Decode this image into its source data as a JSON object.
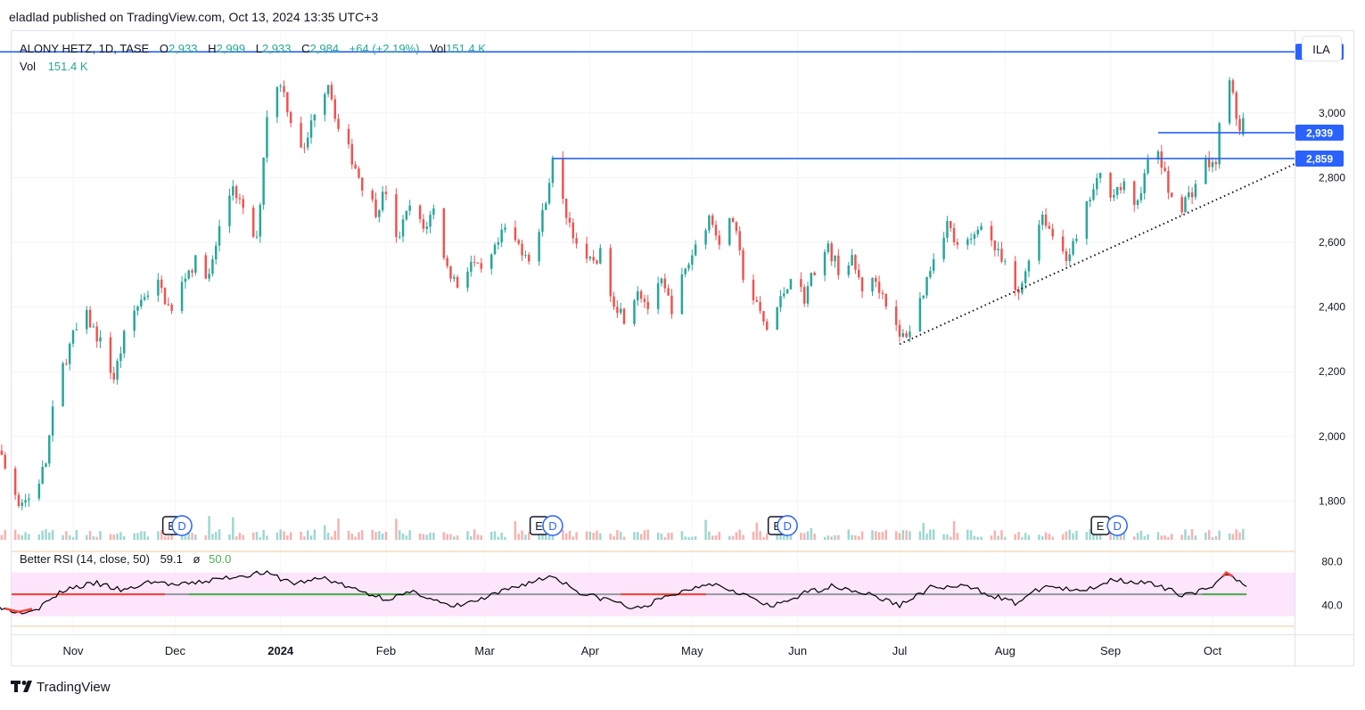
{
  "header": {
    "published": "eladlad published on TradingView.com, Oct 13, 2024 13:35 UTC+3"
  },
  "legend": {
    "symbol": "ALONY HETZ, 1D, TASE",
    "o_label": "O",
    "o_value": "2,933",
    "h_label": "H",
    "h_value": "2,999",
    "l_label": "L",
    "l_value": "2,933",
    "c_label": "C",
    "c_value": "2,984",
    "change": "+64 (+2.19%)",
    "vol_label": "Vol",
    "vol_value": "151.4 K",
    "vol_row_label": "Vol",
    "vol_row_value": "151.4 K"
  },
  "currency_button": "ILA",
  "footer": {
    "brand": "TradingView"
  },
  "colors": {
    "up": "#26a69a",
    "down": "#ef5350",
    "level": "#2962ff",
    "rsi_band": "#fde5fb",
    "rsi_line": "#000000",
    "rsi_mid": "#9598a1",
    "rsi_bull": "#4caf50",
    "rsi_bear": "#f44336"
  },
  "chart_data": [
    {
      "type": "candlestick",
      "symbol": "ALONY HETZ",
      "interval": "1D",
      "exchange": "TASE",
      "currency": "ILA",
      "x_tick_labels": [
        "Nov",
        "Dec",
        "2024",
        "Feb",
        "Mar",
        "Apr",
        "May",
        "Jun",
        "Jul",
        "Aug",
        "Sep",
        "Oct"
      ],
      "y_tick_labels": [
        "1,800",
        "2,000",
        "2,200",
        "2,400",
        "2,600",
        "2,800",
        "3,000"
      ],
      "ylim": [
        1680,
        3250
      ],
      "grid": true,
      "price_levels": [
        {
          "value": 3189,
          "label": "3,189",
          "from": "2023-10-01"
        },
        {
          "value": 2939,
          "label": "2,939",
          "from": "2024-09-15"
        },
        {
          "value": 2859,
          "label": "2,859",
          "from": "2024-03-21"
        }
      ],
      "trendline": {
        "style": "dotted",
        "from": [
          "2024-07-01",
          2285
        ],
        "to": [
          "2024-10-13",
          2820
        ]
      },
      "event_markers": [
        {
          "type": "E",
          "date": "2023-11-30"
        },
        {
          "type": "D",
          "date": "2023-12-03"
        },
        {
          "type": "E",
          "date": "2024-03-17"
        },
        {
          "type": "D",
          "date": "2024-03-21"
        },
        {
          "type": "E",
          "date": "2024-05-26"
        },
        {
          "type": "D",
          "date": "2024-05-29"
        },
        {
          "type": "E",
          "date": "2024-08-29"
        },
        {
          "type": "D",
          "date": "2024-09-03"
        }
      ],
      "anchors": [
        [
          "2023-10-01",
          2240
        ],
        [
          "2023-10-05",
          2230
        ],
        [
          "2023-10-08",
          2030
        ],
        [
          "2023-10-12",
          1900
        ],
        [
          "2023-10-16",
          1800
        ],
        [
          "2023-10-20",
          1810
        ],
        [
          "2023-10-24",
          1920
        ],
        [
          "2023-10-27",
          2150
        ],
        [
          "2023-11-01",
          2310
        ],
        [
          "2023-11-05",
          2370
        ],
        [
          "2023-11-09",
          2290
        ],
        [
          "2023-11-13",
          2180
        ],
        [
          "2023-11-17",
          2350
        ],
        [
          "2023-11-22",
          2440
        ],
        [
          "2023-11-26",
          2470
        ],
        [
          "2023-11-30",
          2380
        ],
        [
          "2023-12-04",
          2500
        ],
        [
          "2023-12-08",
          2550
        ],
        [
          "2023-12-11",
          2490
        ],
        [
          "2023-12-14",
          2640
        ],
        [
          "2023-12-18",
          2780
        ],
        [
          "2023-12-22",
          2660
        ],
        [
          "2023-12-25",
          2600
        ],
        [
          "2023-12-28",
          3000
        ],
        [
          "2024-01-01",
          3100
        ],
        [
          "2024-01-04",
          2980
        ],
        [
          "2024-01-08",
          2880
        ],
        [
          "2024-01-11",
          3010
        ],
        [
          "2024-01-15",
          3100
        ],
        [
          "2024-01-18",
          2950
        ],
        [
          "2024-01-22",
          2860
        ],
        [
          "2024-01-25",
          2780
        ],
        [
          "2024-01-29",
          2700
        ],
        [
          "2024-02-01",
          2760
        ],
        [
          "2024-02-04",
          2600
        ],
        [
          "2024-02-08",
          2710
        ],
        [
          "2024-02-12",
          2640
        ],
        [
          "2024-02-15",
          2700
        ],
        [
          "2024-02-19",
          2520
        ],
        [
          "2024-02-22",
          2470
        ],
        [
          "2024-02-26",
          2540
        ],
        [
          "2024-02-29",
          2500
        ],
        [
          "2024-03-03",
          2550
        ],
        [
          "2024-03-07",
          2640
        ],
        [
          "2024-03-10",
          2600
        ],
        [
          "2024-03-14",
          2560
        ],
        [
          "2024-03-17",
          2630
        ],
        [
          "2024-03-21",
          2850
        ],
        [
          "2024-03-24",
          2720
        ],
        [
          "2024-03-28",
          2600
        ],
        [
          "2024-03-31",
          2530
        ],
        [
          "2024-04-04",
          2560
        ],
        [
          "2024-04-08",
          2420
        ],
        [
          "2024-04-11",
          2370
        ],
        [
          "2024-04-15",
          2460
        ],
        [
          "2024-04-18",
          2400
        ],
        [
          "2024-04-22",
          2470
        ],
        [
          "2024-04-25",
          2400
        ],
        [
          "2024-04-29",
          2510
        ],
        [
          "2024-05-02",
          2590
        ],
        [
          "2024-05-06",
          2680
        ],
        [
          "2024-05-09",
          2610
        ],
        [
          "2024-05-13",
          2670
        ],
        [
          "2024-05-16",
          2500
        ],
        [
          "2024-05-20",
          2400
        ],
        [
          "2024-05-23",
          2330
        ],
        [
          "2024-05-27",
          2420
        ],
        [
          "2024-05-30",
          2500
        ],
        [
          "2024-06-03",
          2430
        ],
        [
          "2024-06-06",
          2520
        ],
        [
          "2024-06-10",
          2580
        ],
        [
          "2024-06-13",
          2520
        ],
        [
          "2024-06-17",
          2540
        ],
        [
          "2024-06-20",
          2460
        ],
        [
          "2024-06-24",
          2480
        ],
        [
          "2024-06-27",
          2420
        ],
        [
          "2024-07-01",
          2300
        ],
        [
          "2024-07-04",
          2330
        ],
        [
          "2024-07-08",
          2450
        ],
        [
          "2024-07-11",
          2560
        ],
        [
          "2024-07-15",
          2660
        ],
        [
          "2024-07-18",
          2580
        ],
        [
          "2024-07-22",
          2600
        ],
        [
          "2024-07-25",
          2670
        ],
        [
          "2024-07-29",
          2580
        ],
        [
          "2024-08-01",
          2520
        ],
        [
          "2024-08-05",
          2430
        ],
        [
          "2024-08-08",
          2560
        ],
        [
          "2024-08-12",
          2690
        ],
        [
          "2024-08-15",
          2620
        ],
        [
          "2024-08-19",
          2560
        ],
        [
          "2024-08-22",
          2600
        ],
        [
          "2024-08-26",
          2740
        ],
        [
          "2024-08-29",
          2800
        ],
        [
          "2024-09-01",
          2760
        ],
        [
          "2024-09-05",
          2770
        ],
        [
          "2024-09-08",
          2700
        ],
        [
          "2024-09-12",
          2840
        ],
        [
          "2024-09-15",
          2880
        ],
        [
          "2024-09-18",
          2760
        ],
        [
          "2024-09-21",
          2700
        ],
        [
          "2024-09-25",
          2760
        ],
        [
          "2024-09-29",
          2850
        ],
        [
          "2024-10-02",
          2830
        ],
        [
          "2024-10-04",
          3150
        ],
        [
          "2024-10-07",
          3050
        ],
        [
          "2024-10-09",
          2940
        ],
        [
          "2024-10-11",
          2984
        ]
      ],
      "last_candle": {
        "open": 2933,
        "high": 2999,
        "low": 2933,
        "close": 2984,
        "change": 64,
        "change_pct": 2.19,
        "volume_k": 151.4
      }
    },
    {
      "type": "line",
      "title": "Better RSI (14, close, 50)",
      "value_label": "59.1",
      "mid_symbol": "ø",
      "mid_value_label": "50.0",
      "ylim": [
        20,
        90
      ],
      "y_tick_labels": [
        "80.0",
        "40.0"
      ],
      "band": [
        30,
        70
      ],
      "midline": 50,
      "anchors": [
        [
          "2023-10-01",
          45
        ],
        [
          "2023-10-08",
          40
        ],
        [
          "2023-10-16",
          34
        ],
        [
          "2023-10-22",
          38
        ],
        [
          "2023-10-30",
          55
        ],
        [
          "2023-11-08",
          60
        ],
        [
          "2023-11-16",
          53
        ],
        [
          "2023-11-24",
          62
        ],
        [
          "2023-12-02",
          58
        ],
        [
          "2023-12-10",
          62
        ],
        [
          "2023-12-18",
          66
        ],
        [
          "2023-12-27",
          70
        ],
        [
          "2024-01-05",
          60
        ],
        [
          "2024-01-14",
          65
        ],
        [
          "2024-01-22",
          55
        ],
        [
          "2024-02-01",
          46
        ],
        [
          "2024-02-10",
          52
        ],
        [
          "2024-02-20",
          38
        ],
        [
          "2024-03-01",
          46
        ],
        [
          "2024-03-10",
          57
        ],
        [
          "2024-03-21",
          67
        ],
        [
          "2024-03-30",
          50
        ],
        [
          "2024-04-08",
          44
        ],
        [
          "2024-04-14",
          36
        ],
        [
          "2024-04-24",
          48
        ],
        [
          "2024-05-06",
          61
        ],
        [
          "2024-05-15",
          52
        ],
        [
          "2024-05-24",
          38
        ],
        [
          "2024-06-04",
          52
        ],
        [
          "2024-06-12",
          58
        ],
        [
          "2024-06-22",
          50
        ],
        [
          "2024-07-01",
          40
        ],
        [
          "2024-07-10",
          56
        ],
        [
          "2024-07-21",
          57
        ],
        [
          "2024-08-04",
          42
        ],
        [
          "2024-08-13",
          58
        ],
        [
          "2024-08-23",
          52
        ],
        [
          "2024-09-02",
          64
        ],
        [
          "2024-09-12",
          60
        ],
        [
          "2024-09-22",
          50
        ],
        [
          "2024-10-01",
          55
        ],
        [
          "2024-10-05",
          70
        ],
        [
          "2024-10-11",
          59
        ]
      ]
    },
    {
      "type": "bar",
      "title": "Vol",
      "value_label": "151.4 K"
    }
  ]
}
